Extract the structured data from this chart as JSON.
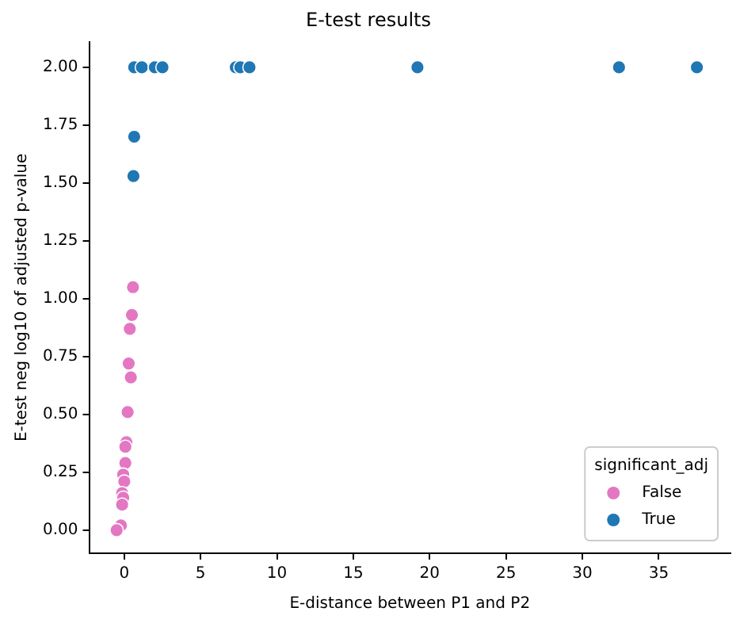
{
  "chart_data": {
    "type": "scatter",
    "title": "E-test results",
    "xlabel": "E-distance between P1 and P2",
    "ylabel": "E-test neg log10 of adjusted p-value",
    "legend_title": "significant_adj",
    "legend": "bottom right",
    "marker": "circle",
    "grid": false,
    "xlim": [
      -2.3,
      39.7
    ],
    "xticks": [
      0,
      5,
      10,
      15,
      20,
      25,
      30,
      35
    ],
    "ylim": [
      -0.1,
      2.11
    ],
    "yticks": [
      {
        "value": 0,
        "label": "0.00"
      },
      {
        "value": 0.25,
        "label": "0.25"
      },
      {
        "value": 0.5,
        "label": "0.50"
      },
      {
        "value": 0.75,
        "label": "0.75"
      },
      {
        "value": 1,
        "label": "1.00"
      },
      {
        "value": 1.25,
        "label": "1.25"
      },
      {
        "value": 1.5,
        "label": "1.50"
      },
      {
        "value": 1.75,
        "label": "1.75"
      },
      {
        "value": 2,
        "label": "2.00"
      }
    ],
    "series": [
      {
        "name": "False",
        "color": "#e377c2",
        "x": [
          0.57,
          0.5,
          0.36,
          0.29,
          0.43,
          0.22,
          0.14,
          0.07,
          0.07,
          -0.07,
          0,
          -0.14,
          -0.07,
          -0.14,
          -0.22,
          -0.5
        ],
        "values": [
          1.05,
          0.93,
          0.87,
          0.72,
          0.66,
          0.51,
          0.38,
          0.36,
          0.29,
          0.24,
          0.21,
          0.16,
          0.14,
          0.11,
          0.02,
          0
        ]
      },
      {
        "name": "True",
        "color": "#1f77b4",
        "x": [
          0.65,
          1.15,
          2.0,
          2.5,
          7.3,
          7.6,
          8.2,
          19.2,
          32.4,
          37.5,
          0.65,
          0.6
        ],
        "values": [
          2,
          2,
          2,
          2,
          2,
          2,
          2,
          2,
          2,
          2,
          1.7,
          1.53
        ]
      }
    ]
  }
}
